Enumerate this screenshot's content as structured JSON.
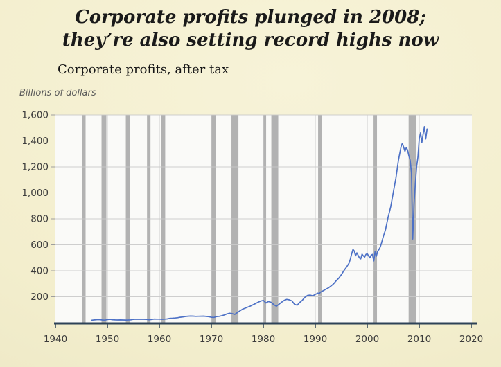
{
  "header": {
    "title_line1": "Corporate profits plunged in 2008;",
    "title_line2": "they’re also setting record highs now",
    "subtitle": "Corporate profits, after tax"
  },
  "chart_data": {
    "type": "line",
    "title": "Corporate profits, after tax",
    "xlabel": "",
    "ylabel": "Billions of dollars",
    "xlim": [
      1940,
      2020
    ],
    "ylim": [
      0,
      1600
    ],
    "grid": true,
    "legend": "none",
    "x_ticks": [
      1940,
      1950,
      1960,
      1970,
      1980,
      1990,
      2000,
      2010,
      2020
    ],
    "y_ticks": {
      "values": [
        200,
        400,
        600,
        800,
        1000,
        1200,
        1400,
        1600
      ],
      "labels": [
        "200",
        "400",
        "600",
        "800",
        "1,000",
        "1,200",
        "1,400",
        "1,600"
      ]
    },
    "recession_bands": [
      [
        1945.1,
        1945.8
      ],
      [
        1948.87,
        1949.8
      ],
      [
        1953.54,
        1954.37
      ],
      [
        1957.62,
        1958.29
      ],
      [
        1960.29,
        1961.12
      ],
      [
        1969.96,
        1970.87
      ],
      [
        1973.87,
        1975.21
      ],
      [
        1980.04,
        1980.54
      ],
      [
        1981.54,
        1982.87
      ],
      [
        1990.54,
        1991.21
      ],
      [
        2001.21,
        2001.87
      ],
      [
        2007.96,
        2009.46
      ]
    ],
    "series": [
      {
        "name": "Corporate profits, after tax (billions of dollars)",
        "points": [
          [
            1947,
            20
          ],
          [
            1947.5,
            22
          ],
          [
            1948,
            24
          ],
          [
            1948.5,
            24.5
          ],
          [
            1949,
            21.5
          ],
          [
            1949.5,
            20.5
          ],
          [
            1950,
            24.5
          ],
          [
            1950.5,
            26.5
          ],
          [
            1951,
            23
          ],
          [
            1951.5,
            22
          ],
          [
            1952,
            21.5
          ],
          [
            1952.5,
            22
          ],
          [
            1953,
            21.5
          ],
          [
            1953.5,
            21
          ],
          [
            1954,
            21.5
          ],
          [
            1954.5,
            22.5
          ],
          [
            1955,
            26
          ],
          [
            1955.5,
            27
          ],
          [
            1956,
            26.5
          ],
          [
            1956.5,
            27
          ],
          [
            1957,
            26.5
          ],
          [
            1957.5,
            25.5
          ],
          [
            1958,
            23
          ],
          [
            1958.5,
            25
          ],
          [
            1959,
            28.5
          ],
          [
            1959.5,
            28
          ],
          [
            1960,
            27.5
          ],
          [
            1960.5,
            26.5
          ],
          [
            1961,
            27.5
          ],
          [
            1961.5,
            29.5
          ],
          [
            1962,
            33.5
          ],
          [
            1962.5,
            34.5
          ],
          [
            1963,
            36.5
          ],
          [
            1963.5,
            38.5
          ],
          [
            1964,
            42
          ],
          [
            1964.5,
            44.5
          ],
          [
            1965,
            48
          ],
          [
            1965.5,
            50
          ],
          [
            1966,
            51
          ],
          [
            1966.5,
            50.5
          ],
          [
            1967,
            49
          ],
          [
            1967.5,
            49.5
          ],
          [
            1968,
            50
          ],
          [
            1968.5,
            50.5
          ],
          [
            1969,
            48.5
          ],
          [
            1969.5,
            46.5
          ],
          [
            1970,
            42
          ],
          [
            1970.5,
            41
          ],
          [
            1971,
            47
          ],
          [
            1971.5,
            49
          ],
          [
            1972,
            54
          ],
          [
            1972.5,
            60
          ],
          [
            1973,
            68
          ],
          [
            1973.5,
            73
          ],
          [
            1974,
            70
          ],
          [
            1974.5,
            64
          ],
          [
            1975,
            78
          ],
          [
            1975.5,
            92
          ],
          [
            1976,
            104
          ],
          [
            1976.5,
            112
          ],
          [
            1977,
            120
          ],
          [
            1977.5,
            128
          ],
          [
            1978,
            138
          ],
          [
            1978.5,
            148
          ],
          [
            1979,
            158
          ],
          [
            1979.5,
            167
          ],
          [
            1980,
            172
          ],
          [
            1980.25,
            162
          ],
          [
            1980.5,
            152
          ],
          [
            1980.75,
            158
          ],
          [
            1981,
            163
          ],
          [
            1981.5,
            157
          ],
          [
            1982,
            140
          ],
          [
            1982.5,
            127
          ],
          [
            1983,
            142
          ],
          [
            1983.5,
            158
          ],
          [
            1984,
            172
          ],
          [
            1984.5,
            180
          ],
          [
            1985,
            176
          ],
          [
            1985.5,
            168
          ],
          [
            1986,
            142
          ],
          [
            1986.5,
            135
          ],
          [
            1987,
            156
          ],
          [
            1987.5,
            173
          ],
          [
            1988,
            196
          ],
          [
            1988.5,
            210
          ],
          [
            1989,
            213
          ],
          [
            1989.5,
            207
          ],
          [
            1990,
            218
          ],
          [
            1990.5,
            228
          ],
          [
            1990.75,
            223
          ],
          [
            1991,
            236
          ],
          [
            1991.5,
            246
          ],
          [
            1992,
            257
          ],
          [
            1992.5,
            268
          ],
          [
            1993,
            282
          ],
          [
            1993.5,
            299
          ],
          [
            1994,
            322
          ],
          [
            1994.5,
            343
          ],
          [
            1995,
            369
          ],
          [
            1995.5,
            401
          ],
          [
            1996,
            428
          ],
          [
            1996.5,
            460
          ],
          [
            1996.75,
            490
          ],
          [
            1997,
            530
          ],
          [
            1997.25,
            565
          ],
          [
            1997.5,
            552
          ],
          [
            1997.75,
            515
          ],
          [
            1998,
            538
          ],
          [
            1998.25,
            518
          ],
          [
            1998.5,
            498
          ],
          [
            1998.75,
            492
          ],
          [
            1999,
            528
          ],
          [
            1999.25,
            514
          ],
          [
            1999.5,
            506
          ],
          [
            1999.75,
            526
          ],
          [
            2000,
            532
          ],
          [
            2000.25,
            514
          ],
          [
            2000.5,
            500
          ],
          [
            2000.75,
            520
          ],
          [
            2001,
            526
          ],
          [
            2001.25,
            476
          ],
          [
            2001.5,
            548
          ],
          [
            2001.75,
            512
          ],
          [
            2002,
            550
          ],
          [
            2002.25,
            564
          ],
          [
            2002.5,
            584
          ],
          [
            2002.75,
            614
          ],
          [
            2003,
            652
          ],
          [
            2003.5,
            716
          ],
          [
            2004,
            810
          ],
          [
            2004.5,
            892
          ],
          [
            2005,
            1002
          ],
          [
            2005.5,
            1112
          ],
          [
            2006,
            1252
          ],
          [
            2006.5,
            1356
          ],
          [
            2006.75,
            1382
          ],
          [
            2007,
            1352
          ],
          [
            2007.25,
            1320
          ],
          [
            2007.5,
            1349
          ],
          [
            2007.75,
            1331
          ],
          [
            2008,
            1286
          ],
          [
            2008.25,
            1251
          ],
          [
            2008.5,
            1154
          ],
          [
            2008.75,
            645
          ],
          [
            2009,
            912
          ],
          [
            2009.25,
            1072
          ],
          [
            2009.5,
            1206
          ],
          [
            2009.75,
            1276
          ],
          [
            2010,
            1415
          ],
          [
            2010.25,
            1462
          ],
          [
            2010.5,
            1388
          ],
          [
            2010.75,
            1452
          ],
          [
            2011,
            1510
          ],
          [
            2011.25,
            1415
          ],
          [
            2011.5,
            1492
          ]
        ]
      }
    ],
    "colors": {
      "line": "#4d71c6",
      "recession_band": "#b2b2b2",
      "gridline": "#c9c9c9",
      "axis": "#2d4257",
      "plot_background": "#fafaf8",
      "page_background": "#f3eecd",
      "title_text": "#1a1a1a",
      "tick_text": "#3b3b3b"
    }
  }
}
